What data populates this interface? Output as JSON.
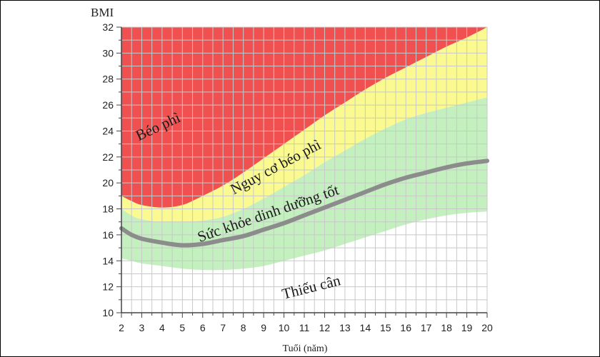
{
  "chart_data": {
    "type": "area",
    "title": "",
    "ylabel": "BMI",
    "xlabel": "Tuổi (năm)",
    "xlim": [
      2,
      20
    ],
    "ylim": [
      10,
      32
    ],
    "x_ticks": [
      2,
      3,
      4,
      5,
      6,
      7,
      8,
      9,
      10,
      11,
      12,
      13,
      14,
      15,
      16,
      17,
      18,
      19,
      20
    ],
    "y_ticks": [
      10,
      12,
      14,
      16,
      18,
      20,
      22,
      24,
      26,
      28,
      30,
      32
    ],
    "grid": true,
    "x": [
      2,
      2.5,
      3,
      4,
      5,
      6,
      7,
      8,
      9,
      10,
      11,
      12,
      13,
      14,
      15,
      16,
      17,
      18,
      19,
      20
    ],
    "bands": [
      {
        "name": "Thiếu cân",
        "color": "#ffffff",
        "lower": [
          10,
          10,
          10,
          10,
          10,
          10,
          10,
          10,
          10,
          10,
          10,
          10,
          10,
          10,
          10,
          10,
          10,
          10,
          10,
          10
        ],
        "upper": [
          14.2,
          14.0,
          13.8,
          13.6,
          13.4,
          13.3,
          13.3,
          13.4,
          13.6,
          14.0,
          14.4,
          14.8,
          15.3,
          15.8,
          16.3,
          16.8,
          17.2,
          17.5,
          17.7,
          17.8
        ]
      },
      {
        "name": "Sức khỏe dinh dưỡng tốt",
        "color": "#c4f0c0",
        "lower": [
          14.2,
          14.0,
          13.8,
          13.6,
          13.4,
          13.3,
          13.3,
          13.4,
          13.6,
          14.0,
          14.4,
          14.8,
          15.3,
          15.8,
          16.3,
          16.8,
          17.2,
          17.5,
          17.7,
          17.8
        ],
        "upper": [
          18.0,
          17.5,
          17.2,
          17.0,
          17.0,
          17.1,
          17.4,
          18.0,
          18.8,
          19.7,
          20.6,
          21.6,
          22.5,
          23.4,
          24.2,
          24.9,
          25.4,
          25.8,
          26.2,
          26.6
        ]
      },
      {
        "name": "Nguy cơ béo phì",
        "color": "#fafa90",
        "lower": [
          18.0,
          17.5,
          17.2,
          17.0,
          17.0,
          17.1,
          17.4,
          18.0,
          18.8,
          19.7,
          20.6,
          21.6,
          22.5,
          23.4,
          24.2,
          24.9,
          25.4,
          25.8,
          26.2,
          26.6
        ],
        "upper": [
          19.0,
          18.6,
          18.3,
          18.1,
          18.3,
          19.0,
          19.8,
          20.8,
          21.9,
          23.0,
          24.1,
          25.2,
          26.2,
          27.2,
          28.1,
          28.9,
          29.7,
          30.5,
          31.2,
          32.0
        ]
      },
      {
        "name": "Béo phì",
        "color": "#f05050",
        "lower": [
          19.0,
          18.6,
          18.3,
          18.1,
          18.3,
          19.0,
          19.8,
          20.8,
          21.9,
          23.0,
          24.1,
          25.2,
          26.2,
          27.2,
          28.1,
          28.9,
          29.7,
          30.5,
          31.2,
          32.0
        ],
        "upper": [
          32,
          32,
          32,
          32,
          32,
          32,
          32,
          32,
          32,
          32,
          32,
          32,
          32,
          32,
          32,
          32,
          32,
          32,
          32,
          32
        ]
      }
    ],
    "series": [
      {
        "values": [
          16.5,
          16.0,
          15.7,
          15.4,
          15.2,
          15.3,
          15.6,
          15.9,
          16.4,
          16.9,
          17.5,
          18.1,
          18.7,
          19.3,
          19.9,
          20.4,
          20.8,
          21.2,
          21.5,
          21.7
        ],
        "color": "#8c8c8c"
      }
    ],
    "zone_labels": [
      {
        "text": "Béo phì",
        "x": 3.9,
        "y": 24.0,
        "angle": -25
      },
      {
        "text": "Nguy cơ béo phì",
        "x": 9.7,
        "y": 20.9,
        "angle": -28
      },
      {
        "text": "Sức khỏe dinh dưỡng tốt",
        "x": 9.3,
        "y": 17.3,
        "angle": -19
      },
      {
        "text": "Thiếu cân",
        "x": 11.4,
        "y": 11.6,
        "angle": -14
      }
    ]
  }
}
